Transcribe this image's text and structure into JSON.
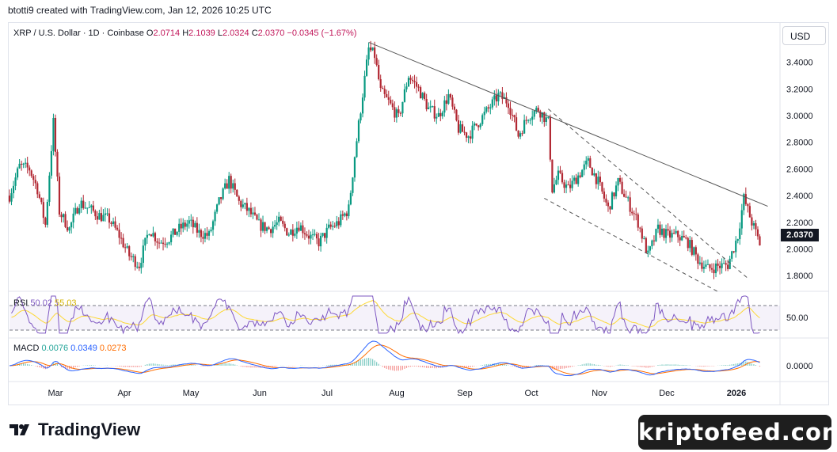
{
  "header": {
    "credit": "btotti9 created with TradingView.com, Jan 12, 2026 10:25 UTC"
  },
  "symbol": {
    "name": "XRP / U.S. Dollar · 1D · Coinbase",
    "o_label": "O",
    "o": "2.0714",
    "h_label": "H",
    "h": "2.1039",
    "l_label": "L",
    "l": "2.0324",
    "c_label": "C",
    "c": "2.0370",
    "change": "−0.0345 (−1.67%)"
  },
  "currency_button": "USD",
  "last_price": "2.0370",
  "colors": {
    "up": "#26a69a",
    "down": "#ef5350",
    "up_candle": "#089981",
    "down_candle": "#b22833",
    "rsi_line": "#7e57c2",
    "rsi_ma": "#fdd835",
    "macd_line": "#2962ff",
    "signal_line": "#ff6d00",
    "trendline": "#555555"
  },
  "rsi": {
    "label": "RSI",
    "value": "50.02",
    "ma": "55.03",
    "axis_label": "50.00"
  },
  "macd": {
    "label": "MACD",
    "hist": "0.0076",
    "macd": "0.0349",
    "signal": "0.0273",
    "axis_label": "0.0000"
  },
  "footer": {
    "brand": "TradingView",
    "watermark": "kriptofeed.com"
  },
  "chart_data": {
    "type": "candlestick",
    "y_ticks": [
      "3.4000",
      "3.2000",
      "3.0000",
      "2.8000",
      "2.6000",
      "2.4000",
      "2.2000",
      "2.0000",
      "1.8000"
    ],
    "ylim": [
      1.7,
      3.6
    ],
    "x_ticks": [
      "Mar",
      "Apr",
      "May",
      "Jun",
      "Jul",
      "Aug",
      "Sep",
      "Oct",
      "Nov",
      "Dec",
      "2026"
    ],
    "close_path": [
      [
        0,
        2.4
      ],
      [
        5,
        2.62
      ],
      [
        10,
        2.6
      ],
      [
        14,
        2.45
      ],
      [
        18,
        2.18
      ],
      [
        22,
        2.95
      ],
      [
        25,
        2.28
      ],
      [
        30,
        2.15
      ],
      [
        35,
        2.35
      ],
      [
        40,
        2.3
      ],
      [
        45,
        2.25
      ],
      [
        50,
        2.22
      ],
      [
        55,
        2.1
      ],
      [
        60,
        1.95
      ],
      [
        65,
        1.88
      ],
      [
        70,
        2.15
      ],
      [
        75,
        2.05
      ],
      [
        80,
        2.08
      ],
      [
        85,
        2.15
      ],
      [
        90,
        2.2
      ],
      [
        95,
        2.12
      ],
      [
        100,
        2.1
      ],
      [
        105,
        2.35
      ],
      [
        110,
        2.52
      ],
      [
        115,
        2.35
      ],
      [
        120,
        2.28
      ],
      [
        125,
        2.18
      ],
      [
        130,
        2.15
      ],
      [
        135,
        2.2
      ],
      [
        140,
        2.12
      ],
      [
        145,
        2.18
      ],
      [
        150,
        2.1
      ],
      [
        155,
        2.05
      ],
      [
        160,
        2.15
      ],
      [
        165,
        2.2
      ],
      [
        170,
        2.3
      ],
      [
        173,
        2.7
      ],
      [
        176,
        3.05
      ],
      [
        180,
        3.5
      ],
      [
        183,
        3.45
      ],
      [
        186,
        3.18
      ],
      [
        190,
        3.1
      ],
      [
        195,
        2.98
      ],
      [
        200,
        3.3
      ],
      [
        205,
        3.2
      ],
      [
        210,
        3.05
      ],
      [
        215,
        3.0
      ],
      [
        220,
        3.15
      ],
      [
        225,
        2.9
      ],
      [
        230,
        2.85
      ],
      [
        235,
        2.95
      ],
      [
        240,
        3.05
      ],
      [
        245,
        3.15
      ],
      [
        250,
        3.1
      ],
      [
        255,
        2.85
      ],
      [
        260,
        3.0
      ],
      [
        265,
        3.05
      ],
      [
        270,
        2.95
      ],
      [
        272,
        2.45
      ],
      [
        275,
        2.55
      ],
      [
        280,
        2.45
      ],
      [
        285,
        2.55
      ],
      [
        290,
        2.65
      ],
      [
        295,
        2.5
      ],
      [
        300,
        2.3
      ],
      [
        305,
        2.5
      ],
      [
        310,
        2.35
      ],
      [
        315,
        2.2
      ],
      [
        320,
        1.95
      ],
      [
        325,
        2.15
      ],
      [
        330,
        2.1
      ],
      [
        335,
        2.1
      ],
      [
        340,
        2.05
      ],
      [
        345,
        1.92
      ],
      [
        350,
        1.85
      ],
      [
        355,
        1.87
      ],
      [
        360,
        1.88
      ],
      [
        365,
        2.1
      ],
      [
        368,
        2.38
      ],
      [
        372,
        2.2
      ],
      [
        376,
        2.04
      ]
    ],
    "trendlines": [
      {
        "style": "solid",
        "from": [
          180,
          3.55
        ],
        "to": [
          380,
          2.32
        ]
      },
      {
        "style": "dashed",
        "from": [
          270,
          3.05
        ],
        "to": [
          370,
          1.78
        ]
      },
      {
        "style": "dashed",
        "from": [
          268,
          2.38
        ],
        "to": [
          355,
          1.68
        ]
      }
    ]
  }
}
